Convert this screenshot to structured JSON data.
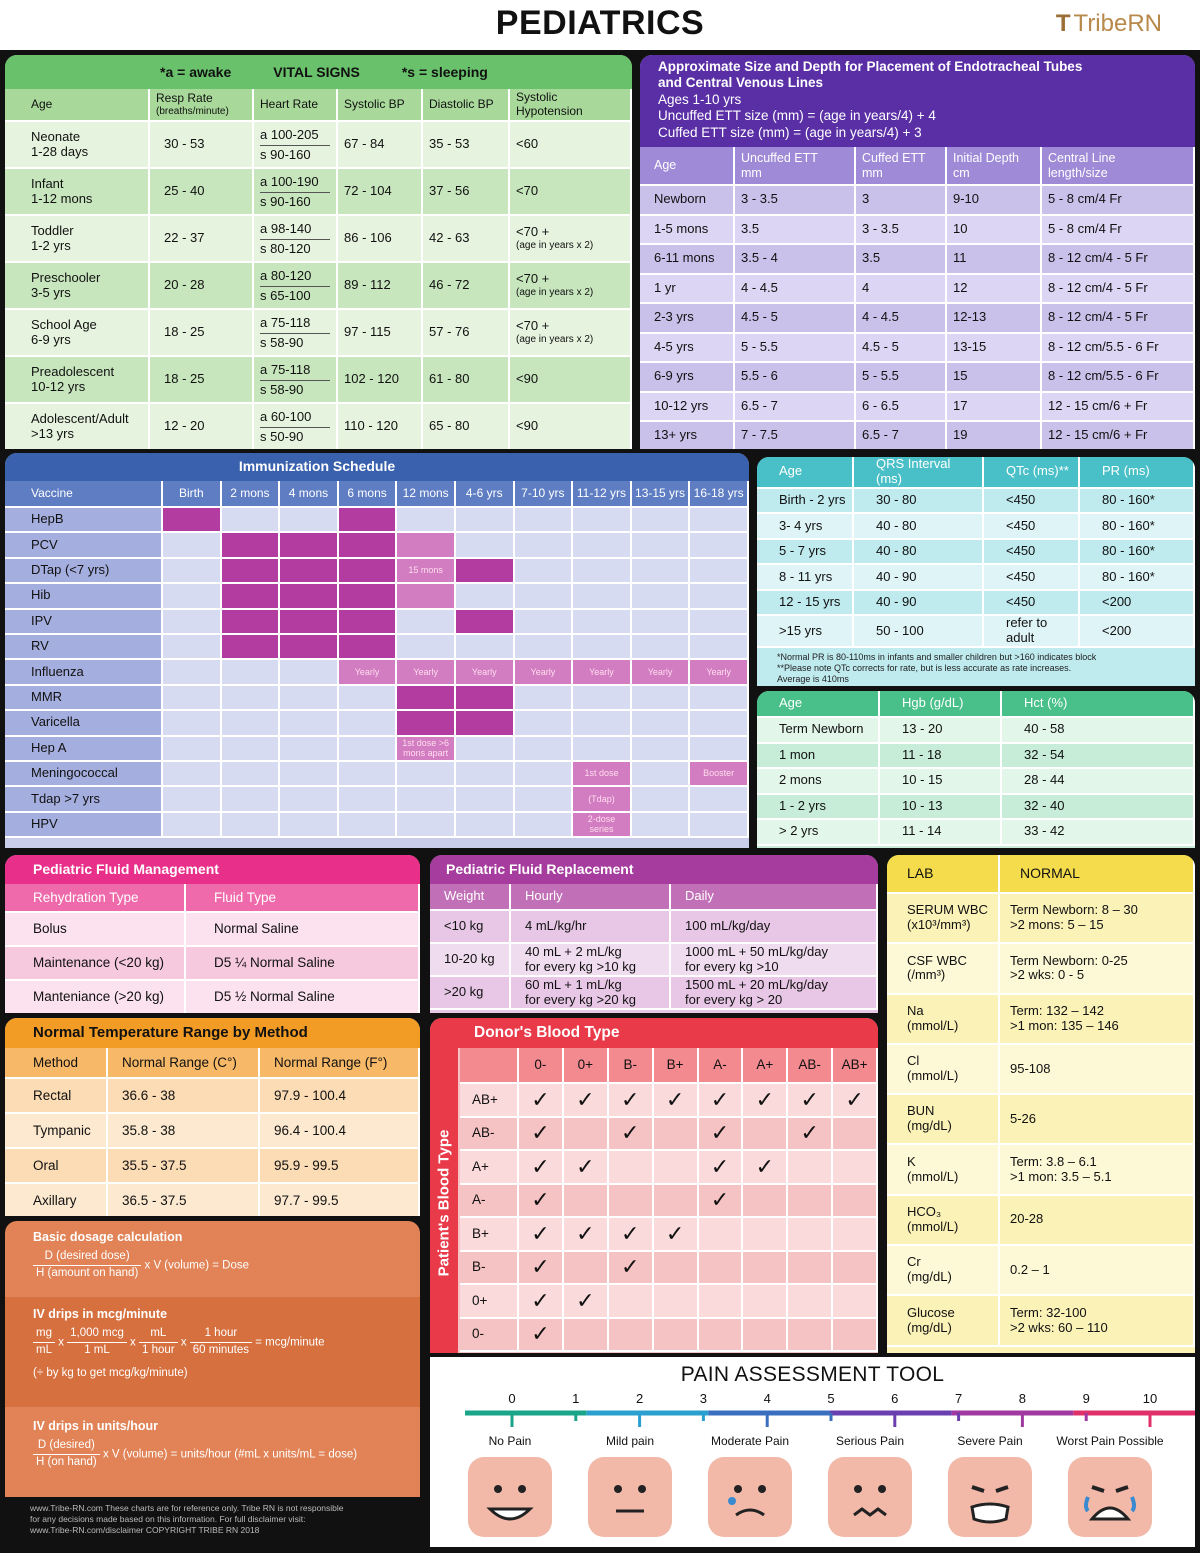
{
  "header": {
    "title": "PEDIATRICS",
    "logo": "TribeRN"
  },
  "vitals": {
    "legend_awake": "*a = awake",
    "title": "VITAL SIGNS",
    "legend_sleeping": "*s = sleeping",
    "cols": [
      "Age",
      "Resp Rate",
      "(breaths/minute)",
      "Heart Rate",
      "Systolic BP",
      "Diastolic BP",
      "Systolic",
      "Hypotension"
    ],
    "rows": [
      {
        "age1": "Neonate",
        "age2": "1-28 days",
        "rr": "30 - 53",
        "hra": "a 100-205",
        "hrs": "s 90-160",
        "sbp": "67 - 84",
        "dbp": "35 - 53",
        "hyp1": "<60",
        "hyp2": ""
      },
      {
        "age1": "Infant",
        "age2": "1-12 mons",
        "rr": "25 - 40",
        "hra": "a 100-190",
        "hrs": "s 90-160",
        "sbp": "72 - 104",
        "dbp": "37 - 56",
        "hyp1": "<70",
        "hyp2": ""
      },
      {
        "age1": "Toddler",
        "age2": "1-2 yrs",
        "rr": "22 - 37",
        "hra": "a 98-140",
        "hrs": "s 80-120",
        "sbp": "86 - 106",
        "dbp": "42 - 63",
        "hyp1": "<70 +",
        "hyp2": "(age in years x 2)"
      },
      {
        "age1": "Preschooler",
        "age2": "3-5 yrs",
        "rr": "20 - 28",
        "hra": "a 80-120",
        "hrs": "s 65-100",
        "sbp": "89 - 112",
        "dbp": "46 - 72",
        "hyp1": "<70 +",
        "hyp2": "(age in years x 2)"
      },
      {
        "age1": "School Age",
        "age2": "6-9 yrs",
        "rr": "18 - 25",
        "hra": "a 75-118",
        "hrs": "s 58-90",
        "sbp": "97 - 115",
        "dbp": "57 - 76",
        "hyp1": "<70 +",
        "hyp2": "(age in years x 2)"
      },
      {
        "age1": "Preadolescent",
        "age2": "10-12 yrs",
        "rr": "18 - 25",
        "hra": "a 75-118",
        "hrs": "s 58-90",
        "sbp": "102 - 120",
        "dbp": "61 - 80",
        "hyp1": "<90",
        "hyp2": ""
      },
      {
        "age1": "Adolescent/Adult",
        "age2": ">13 yrs",
        "rr": "12 - 20",
        "hra": "a 60-100",
        "hrs": "s 50-90",
        "sbp": "110 - 120",
        "dbp": "65 - 80",
        "hyp1": "<90",
        "hyp2": ""
      }
    ]
  },
  "ett": {
    "title1": "Approximate Size and Depth for Placement of Endotracheal Tubes",
    "title2": "and Central Venous Lines",
    "line1": "Ages 1-10 yrs",
    "line2": "Uncuffed ETT size (mm) = (age in years/4) + 4",
    "line3": "Cuffed ETT size (mm) = (age in years/4) + 3",
    "cols": [
      "Age",
      "Uncuffed ETT",
      "mm",
      "Cuffed ETT",
      "mm",
      "Initial Depth",
      "cm",
      "Central Line",
      "length/size"
    ],
    "rows": [
      [
        "Newborn",
        "3 - 3.5",
        "3",
        "9-10",
        "5 - 8 cm/4 Fr"
      ],
      [
        "1-5 mons",
        "3.5",
        "3 - 3.5",
        "10",
        "5 - 8 cm/4 Fr"
      ],
      [
        "6-11 mons",
        "3.5 - 4",
        "3.5",
        "11",
        "8 - 12 cm/4 - 5 Fr"
      ],
      [
        "1 yr",
        "4 - 4.5",
        "4",
        "12",
        "8 - 12 cm/4 - 5 Fr"
      ],
      [
        "2-3 yrs",
        "4.5 - 5",
        "4 - 4.5",
        "12-13",
        "8 - 12 cm/4 - 5 Fr"
      ],
      [
        "4-5 yrs",
        "5 - 5.5",
        "4.5 - 5",
        "13-15",
        "8 - 12 cm/5.5 - 6 Fr"
      ],
      [
        "6-9 yrs",
        "5.5 - 6",
        "5 - 5.5",
        "15",
        "8 - 12 cm/5.5 - 6 Fr"
      ],
      [
        "10-12 yrs",
        "6.5 - 7",
        "6 - 6.5",
        "17",
        "12 - 15 cm/6 + Fr"
      ],
      [
        "13+ yrs",
        "7 - 7.5",
        "6.5 - 7",
        "19",
        "12 - 15 cm/6 + Fr"
      ]
    ]
  },
  "immunization": {
    "title": "Immunization Schedule",
    "cols": [
      "Vaccine",
      "Birth",
      "2 mons",
      "4 mons",
      "6 mons",
      "12 mons",
      "4-6 yrs",
      "7-10 yrs",
      "11-12 yrs",
      "13-15 yrs",
      "16-18 yrs"
    ],
    "rows": [
      {
        "name": "HepB",
        "cells": [
          [
            1,
            ""
          ],
          [
            0,
            ""
          ],
          [
            0,
            ""
          ],
          [
            1,
            ""
          ],
          [
            0,
            ""
          ],
          [
            0,
            ""
          ],
          [
            0,
            ""
          ],
          [
            0,
            ""
          ],
          [
            0,
            ""
          ],
          [
            0,
            ""
          ]
        ]
      },
      {
        "name": "PCV",
        "cells": [
          [
            0,
            ""
          ],
          [
            1,
            ""
          ],
          [
            1,
            ""
          ],
          [
            1,
            ""
          ],
          [
            2,
            ""
          ],
          [
            0,
            ""
          ],
          [
            0,
            ""
          ],
          [
            0,
            ""
          ],
          [
            0,
            ""
          ],
          [
            0,
            ""
          ]
        ]
      },
      {
        "name": "DTap (<7 yrs)",
        "cells": [
          [
            0,
            ""
          ],
          [
            1,
            ""
          ],
          [
            1,
            ""
          ],
          [
            1,
            ""
          ],
          [
            2,
            "15 mons"
          ],
          [
            1,
            ""
          ],
          [
            0,
            ""
          ],
          [
            0,
            ""
          ],
          [
            0,
            ""
          ],
          [
            0,
            ""
          ]
        ]
      },
      {
        "name": "Hib",
        "cells": [
          [
            0,
            ""
          ],
          [
            1,
            ""
          ],
          [
            1,
            ""
          ],
          [
            1,
            ""
          ],
          [
            2,
            ""
          ],
          [
            0,
            ""
          ],
          [
            0,
            ""
          ],
          [
            0,
            ""
          ],
          [
            0,
            ""
          ],
          [
            0,
            ""
          ]
        ]
      },
      {
        "name": "IPV",
        "cells": [
          [
            0,
            ""
          ],
          [
            1,
            ""
          ],
          [
            1,
            ""
          ],
          [
            1,
            ""
          ],
          [
            0,
            ""
          ],
          [
            1,
            ""
          ],
          [
            0,
            ""
          ],
          [
            0,
            ""
          ],
          [
            0,
            ""
          ],
          [
            0,
            ""
          ]
        ]
      },
      {
        "name": "RV",
        "cells": [
          [
            0,
            ""
          ],
          [
            1,
            ""
          ],
          [
            1,
            ""
          ],
          [
            1,
            ""
          ],
          [
            0,
            ""
          ],
          [
            0,
            ""
          ],
          [
            0,
            ""
          ],
          [
            0,
            ""
          ],
          [
            0,
            ""
          ],
          [
            0,
            ""
          ]
        ]
      },
      {
        "name": "Influenza",
        "cells": [
          [
            0,
            ""
          ],
          [
            0,
            ""
          ],
          [
            0,
            ""
          ],
          [
            2,
            "Yearly"
          ],
          [
            2,
            "Yearly"
          ],
          [
            2,
            "Yearly"
          ],
          [
            2,
            "Yearly"
          ],
          [
            2,
            "Yearly"
          ],
          [
            2,
            "Yearly"
          ],
          [
            2,
            "Yearly"
          ]
        ]
      },
      {
        "name": "MMR",
        "cells": [
          [
            0,
            ""
          ],
          [
            0,
            ""
          ],
          [
            0,
            ""
          ],
          [
            0,
            ""
          ],
          [
            1,
            ""
          ],
          [
            1,
            ""
          ],
          [
            0,
            ""
          ],
          [
            0,
            ""
          ],
          [
            0,
            ""
          ],
          [
            0,
            ""
          ]
        ]
      },
      {
        "name": "Varicella",
        "cells": [
          [
            0,
            ""
          ],
          [
            0,
            ""
          ],
          [
            0,
            ""
          ],
          [
            0,
            ""
          ],
          [
            1,
            ""
          ],
          [
            1,
            ""
          ],
          [
            0,
            ""
          ],
          [
            0,
            ""
          ],
          [
            0,
            ""
          ],
          [
            0,
            ""
          ]
        ]
      },
      {
        "name": "Hep A",
        "cells": [
          [
            0,
            ""
          ],
          [
            0,
            ""
          ],
          [
            0,
            ""
          ],
          [
            0,
            ""
          ],
          [
            2,
            "1st dose >6 mons apart"
          ],
          [
            0,
            ""
          ],
          [
            0,
            ""
          ],
          [
            0,
            ""
          ],
          [
            0,
            ""
          ],
          [
            0,
            ""
          ]
        ]
      },
      {
        "name": "Meningococcal",
        "cells": [
          [
            0,
            ""
          ],
          [
            0,
            ""
          ],
          [
            0,
            ""
          ],
          [
            0,
            ""
          ],
          [
            0,
            ""
          ],
          [
            0,
            ""
          ],
          [
            0,
            ""
          ],
          [
            2,
            "1st dose"
          ],
          [
            0,
            ""
          ],
          [
            2,
            "Booster"
          ]
        ]
      },
      {
        "name": "Tdap >7 yrs",
        "cells": [
          [
            0,
            ""
          ],
          [
            0,
            ""
          ],
          [
            0,
            ""
          ],
          [
            0,
            ""
          ],
          [
            0,
            ""
          ],
          [
            0,
            ""
          ],
          [
            0,
            ""
          ],
          [
            2,
            "(Tdap)"
          ],
          [
            0,
            ""
          ],
          [
            0,
            ""
          ]
        ]
      },
      {
        "name": "HPV",
        "cells": [
          [
            0,
            ""
          ],
          [
            0,
            ""
          ],
          [
            0,
            ""
          ],
          [
            0,
            ""
          ],
          [
            0,
            ""
          ],
          [
            0,
            ""
          ],
          [
            0,
            ""
          ],
          [
            2,
            "2-dose series"
          ],
          [
            0,
            ""
          ],
          [
            0,
            ""
          ]
        ]
      }
    ]
  },
  "ekg": {
    "cols": [
      "Age",
      "QRS Interval (ms)",
      "QTc (ms)**",
      "PR (ms)"
    ],
    "rows": [
      [
        "Birth - 2 yrs",
        "30 - 80",
        "<450",
        "80 - 160*"
      ],
      [
        "3- 4 yrs",
        "40 - 80",
        "<450",
        "80 - 160*"
      ],
      [
        "5 - 7 yrs",
        "40 - 80",
        "<450",
        "80 - 160*"
      ],
      [
        "8 - 11 yrs",
        "40 - 90",
        "<450",
        "80 - 160*"
      ],
      [
        "12 - 15 yrs",
        "40 - 90",
        "<450",
        "<200"
      ],
      [
        ">15 yrs",
        "50 - 100",
        "refer to adult",
        "<200"
      ]
    ],
    "note1": "*Normal PR is 80-110ms in infants and smaller children but >160 indicates block",
    "note2": "**Please note QTc corrects for rate, but is less accurate as rate increases.",
    "note3": "Average is 410ms"
  },
  "hgb": {
    "cols": [
      "Age",
      "Hgb (g/dL)",
      "Hct (%)"
    ],
    "rows": [
      [
        "Term Newborn",
        "13 - 20",
        "40 - 58"
      ],
      [
        "1 mon",
        "11 - 18",
        "32 - 54"
      ],
      [
        "2 mons",
        "10 - 15",
        "28 - 44"
      ],
      [
        "1 - 2 yrs",
        "10 - 13",
        "32 - 40"
      ],
      [
        "> 2 yrs",
        "11 - 14",
        "33 - 42"
      ]
    ]
  },
  "fluid_mgmt": {
    "title": "Pediatric Fluid Management",
    "cols": [
      "Rehydration Type",
      "Fluid Type"
    ],
    "rows": [
      [
        "Bolus",
        "Normal Saline"
      ],
      [
        "Maintenance (<20 kg)",
        "D5 ¼ Normal Saline"
      ],
      [
        "Manteniance (>20 kg)",
        "D5 ½ Normal Saline"
      ]
    ]
  },
  "fluid_repl": {
    "title": "Pediatric Fluid Replacement",
    "cols": [
      "Weight",
      "Hourly",
      "Daily"
    ],
    "rows": [
      [
        "<10 kg",
        "4 mL/kg/hr",
        "",
        "100 mL/kg/day",
        ""
      ],
      [
        "10-20 kg",
        "40 mL + 2 mL/kg",
        "for every kg >10 kg",
        "1000 mL + 50 mL/kg/day",
        "for every kg >10"
      ],
      [
        ">20 kg",
        "60 mL + 1 mL/kg",
        "for every kg >20 kg",
        "1500 mL + 20 mL/kg/day",
        "for every kg > 20"
      ]
    ]
  },
  "labs": {
    "cols": [
      "LAB",
      "NORMAL"
    ],
    "rows": [
      [
        "SERUM WBC",
        "(x10³/mm³)",
        "Term Newborn: 8 – 30",
        ">2 mons: 5 – 15"
      ],
      [
        "CSF WBC",
        "(/mm³)",
        "Term Newborn: 0-25",
        ">2 wks: 0 - 5"
      ],
      [
        "Na",
        "(mmol/L)",
        "Term: 132 – 142",
        ">1 mon: 135 – 146"
      ],
      [
        "Cl",
        "(mmol/L)",
        "95-108",
        ""
      ],
      [
        "BUN",
        "(mg/dL)",
        "5-26",
        ""
      ],
      [
        "K",
        "(mmol/L)",
        "Term: 3.8 – 6.1",
        ">1 mon: 3.5 – 5.1"
      ],
      [
        "HCO₃",
        "(mmol/L)",
        "20-28",
        ""
      ],
      [
        "Cr",
        "(mg/dL)",
        "0.2 – 1",
        ""
      ],
      [
        "Glucose",
        "(mg/dL)",
        "Term: 32-100",
        ">2 wks: 60 – 110"
      ]
    ]
  },
  "temperature": {
    "title": "Normal Temperature Range by Method",
    "cols": [
      "Method",
      "Normal Range (C°)",
      "Normal Range (F°)"
    ],
    "rows": [
      [
        "Rectal",
        "36.6 - 38",
        "97.9 - 100.4"
      ],
      [
        "Tympanic",
        "35.8 - 38",
        "96.4 - 100.4"
      ],
      [
        "Oral",
        "35.5 - 37.5",
        "95.9 - 99.5"
      ],
      [
        "Axillary",
        "36.5 - 37.5",
        "97.7 - 99.5"
      ]
    ]
  },
  "dosage": {
    "basic_title": "Basic dosage calculation",
    "basic_num": "D (desired dose)",
    "basic_den": "H (amount on hand)",
    "basic_tail": "x V (volume) = Dose",
    "mcg_title": "IV drips in mcg/minute",
    "mcg_f1n": "mg",
    "mcg_f1d": "mL",
    "mcg_f2n": "1,000 mcg",
    "mcg_f2d": "1 mL",
    "mcg_f3n": "mL",
    "mcg_f3d": "1 hour",
    "mcg_f4n": "1 hour",
    "mcg_f4d": "60 minutes",
    "mcg_x": "x",
    "mcg_eq": "= mcg/minute",
    "mcg_note": "(÷ by kg to get mcg/kg/minute)",
    "units_title": "IV drips in units/hour",
    "units_num": "D (desired)",
    "units_den": "H (on hand)",
    "units_tail": "x V (volume) = units/hour (#mL x units/mL = dose)"
  },
  "footer": {
    "line1": "www.Tribe-RN.com    These charts are for reference only. Tribe RN is not responsible",
    "line2": "for any decisions made based on this information. For full disclaimer visit:",
    "line3": "www.Tribe-RN.com/disclaimer COPYRIGHT TRIBE RN 2018"
  },
  "blood": {
    "title": "Donor's Blood Type",
    "side_label": "Patient's Blood Type",
    "donors": [
      "0-",
      "0+",
      "B-",
      "B+",
      "A-",
      "A+",
      "AB-",
      "AB+"
    ],
    "check": "✓",
    "rows": [
      {
        "type": "AB+",
        "ok": [
          1,
          1,
          1,
          1,
          1,
          1,
          1,
          1
        ]
      },
      {
        "type": "AB-",
        "ok": [
          1,
          0,
          1,
          0,
          1,
          0,
          1,
          0
        ]
      },
      {
        "type": "A+",
        "ok": [
          1,
          1,
          0,
          0,
          1,
          1,
          0,
          0
        ]
      },
      {
        "type": "A-",
        "ok": [
          1,
          0,
          0,
          0,
          1,
          0,
          0,
          0
        ]
      },
      {
        "type": "B+",
        "ok": [
          1,
          1,
          1,
          1,
          0,
          0,
          0,
          0
        ]
      },
      {
        "type": "B-",
        "ok": [
          1,
          0,
          1,
          0,
          0,
          0,
          0,
          0
        ]
      },
      {
        "type": "0+",
        "ok": [
          1,
          1,
          0,
          0,
          0,
          0,
          0,
          0
        ]
      },
      {
        "type": "0-",
        "ok": [
          1,
          0,
          0,
          0,
          0,
          0,
          0,
          0
        ]
      }
    ]
  },
  "pain": {
    "title": "PAIN ASSESSMENT TOOL",
    "numbers": [
      "0",
      "1",
      "2",
      "3",
      "4",
      "5",
      "6",
      "7",
      "8",
      "9",
      "10"
    ],
    "labels": [
      "No Pain",
      "Mild pain",
      "Moderate Pain",
      "Serious Pain",
      "Severe Pain",
      "Worst Pain Possible"
    ],
    "colors": [
      "#1aa58a",
      "#2a9fd0",
      "#3a6fc0",
      "#6a3fb0",
      "#a03aa0",
      "#e0306a"
    ]
  }
}
